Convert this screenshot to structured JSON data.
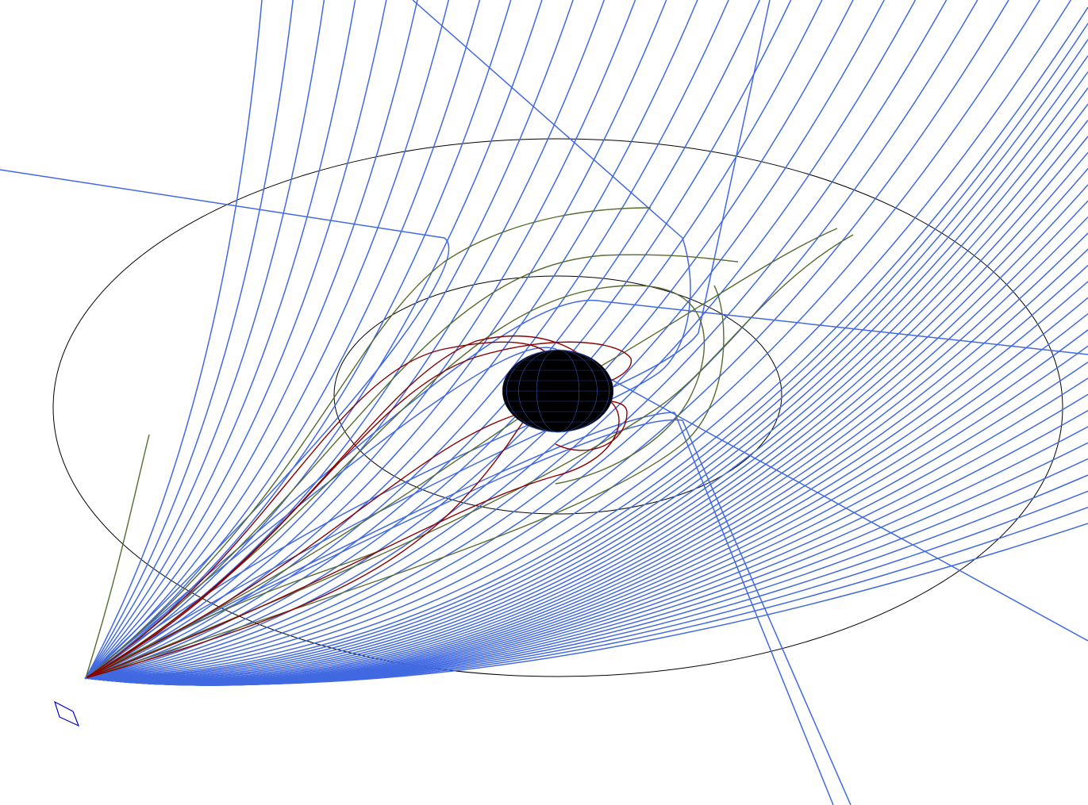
{
  "diagram": {
    "kind": "geodesic-light-rays-around-black-hole",
    "colors": {
      "background": "#ffffff",
      "escaping_ray": "#4169e1",
      "captured_ray": "#8b0000",
      "marginal_ray": "#556b2f",
      "reference_ring": "#000000",
      "black_hole": "#000000",
      "mesh": "#4169e1",
      "camera_plane": "#0000cd"
    },
    "ray_counts": {
      "escaping": 60,
      "marginal": 6,
      "captured": 6,
      "straight": 5
    },
    "icons": [
      "camera-plane-icon"
    ]
  }
}
